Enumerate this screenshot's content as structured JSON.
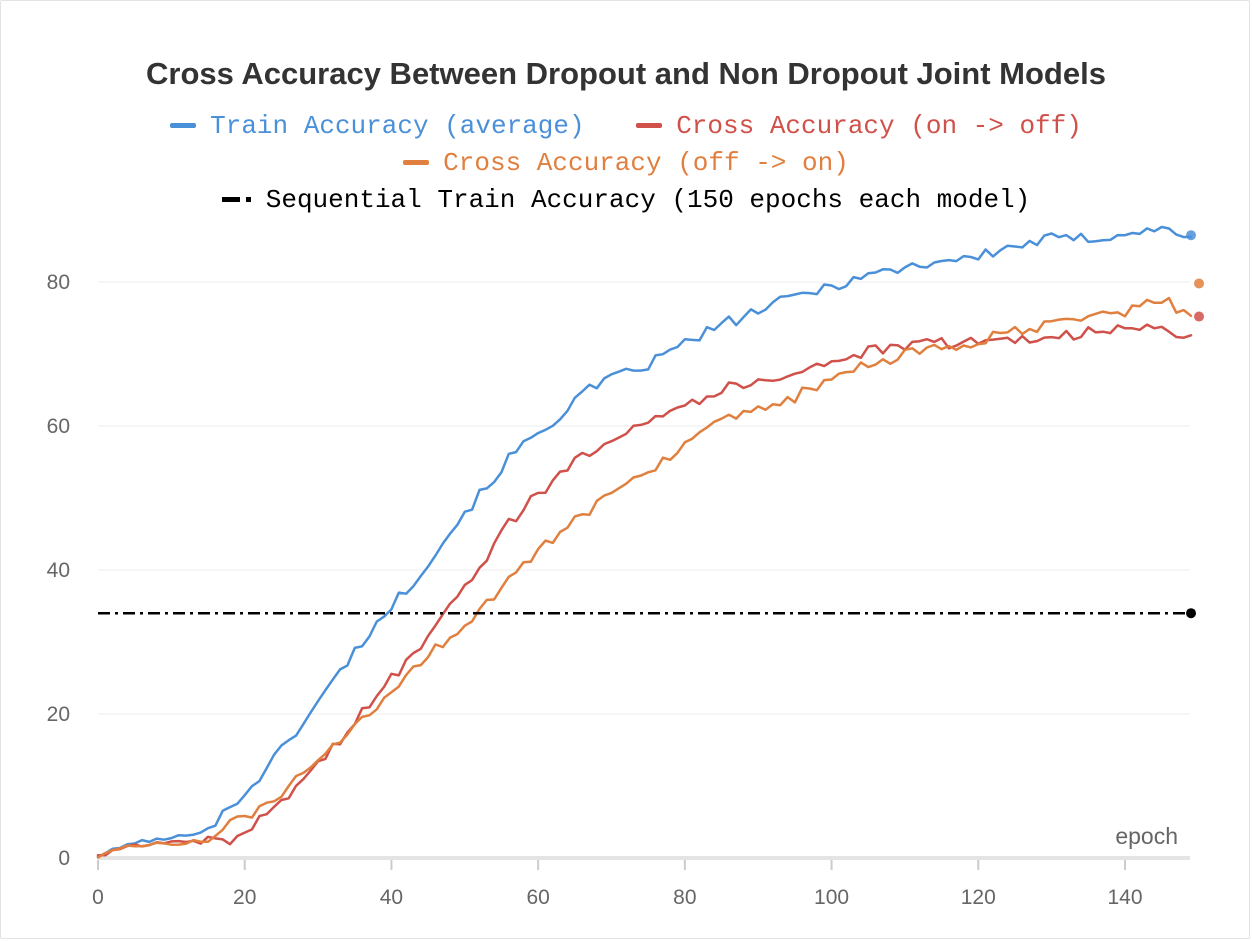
{
  "chart_data": {
    "type": "line",
    "title": "Cross Accuracy Between Dropout and Non Dropout Joint Models",
    "xlabel": "epoch",
    "ylabel": "",
    "xlim": [
      0,
      150
    ],
    "ylim": [
      0,
      90
    ],
    "x_ticks": [
      0,
      20,
      40,
      60,
      80,
      100,
      120,
      140
    ],
    "y_ticks": [
      0,
      20,
      40,
      60,
      80
    ],
    "grid": true,
    "legend_position": "top-center",
    "x_last": 149,
    "series": [
      {
        "name": "Train Accuracy (average)",
        "color": "#4a90d9",
        "style": "solid",
        "anchors": [
          [
            0,
            0.3
          ],
          [
            5,
            2.2
          ],
          [
            10,
            2.7
          ],
          [
            15,
            4
          ],
          [
            18,
            7
          ],
          [
            20,
            9
          ],
          [
            23,
            12.5
          ],
          [
            25,
            15
          ],
          [
            28,
            19
          ],
          [
            30,
            21.5
          ],
          [
            33,
            26
          ],
          [
            36,
            30
          ],
          [
            38,
            32.5
          ],
          [
            40,
            35
          ],
          [
            43,
            38.5
          ],
          [
            46,
            42.5
          ],
          [
            50,
            48
          ],
          [
            53,
            51.5
          ],
          [
            56,
            55.5
          ],
          [
            60,
            59
          ],
          [
            63,
            61.5
          ],
          [
            66,
            64.5
          ],
          [
            70,
            66.5
          ],
          [
            75,
            68.5
          ],
          [
            80,
            71.5
          ],
          [
            85,
            74
          ],
          [
            90,
            76
          ],
          [
            95,
            78
          ],
          [
            100,
            79.5
          ],
          [
            105,
            81
          ],
          [
            110,
            82
          ],
          [
            115,
            83
          ],
          [
            120,
            83.5
          ],
          [
            125,
            85
          ],
          [
            130,
            86
          ],
          [
            135,
            86
          ],
          [
            140,
            86.8
          ],
          [
            145,
            87.3
          ],
          [
            149,
            86.5
          ]
        ]
      },
      {
        "name": "Cross Accuracy (on -> off)",
        "color": "#d0504a",
        "style": "solid",
        "anchors": [
          [
            0,
            0.3
          ],
          [
            5,
            1.8
          ],
          [
            10,
            2.1
          ],
          [
            15,
            2.2
          ],
          [
            18,
            2.3
          ],
          [
            20,
            3.5
          ],
          [
            23,
            6
          ],
          [
            25,
            8
          ],
          [
            28,
            11
          ],
          [
            30,
            13
          ],
          [
            33,
            16.5
          ],
          [
            36,
            20
          ],
          [
            38,
            22.5
          ],
          [
            40,
            25
          ],
          [
            43,
            28
          ],
          [
            46,
            33
          ],
          [
            50,
            38
          ],
          [
            53,
            42
          ],
          [
            56,
            46.5
          ],
          [
            60,
            50.5
          ],
          [
            63,
            53
          ],
          [
            66,
            56
          ],
          [
            70,
            58.5
          ],
          [
            75,
            61
          ],
          [
            80,
            63
          ],
          [
            85,
            65
          ],
          [
            90,
            66.3
          ],
          [
            95,
            67.5
          ],
          [
            100,
            69
          ],
          [
            105,
            70.3
          ],
          [
            110,
            71
          ],
          [
            115,
            71.5
          ],
          [
            120,
            71.8
          ],
          [
            125,
            72
          ],
          [
            130,
            72.5
          ],
          [
            135,
            73
          ],
          [
            140,
            73.3
          ],
          [
            145,
            73.8
          ],
          [
            149,
            72
          ]
        ],
        "end_marker": 75.2
      },
      {
        "name": "Cross Accuracy (off -> on)",
        "color": "#e07f3e",
        "style": "solid",
        "anchors": [
          [
            0,
            0.3
          ],
          [
            5,
            1.8
          ],
          [
            10,
            2
          ],
          [
            15,
            2.5
          ],
          [
            18,
            4.5
          ],
          [
            20,
            5.5
          ],
          [
            23,
            7.5
          ],
          [
            25,
            9
          ],
          [
            28,
            11.5
          ],
          [
            30,
            13
          ],
          [
            33,
            16
          ],
          [
            36,
            19
          ],
          [
            38,
            21
          ],
          [
            40,
            23
          ],
          [
            43,
            26.5
          ],
          [
            46,
            29
          ],
          [
            50,
            32.5
          ],
          [
            53,
            35.5
          ],
          [
            56,
            38.5
          ],
          [
            60,
            42.5
          ],
          [
            63,
            45
          ],
          [
            66,
            47.5
          ],
          [
            70,
            51
          ],
          [
            75,
            54
          ],
          [
            80,
            57
          ],
          [
            85,
            60.5
          ],
          [
            90,
            62
          ],
          [
            95,
            64
          ],
          [
            100,
            66.5
          ],
          [
            105,
            68.5
          ],
          [
            110,
            69.8
          ],
          [
            115,
            70.8
          ],
          [
            120,
            71.8
          ],
          [
            125,
            73
          ],
          [
            130,
            74
          ],
          [
            135,
            75
          ],
          [
            140,
            76
          ],
          [
            145,
            77.5
          ],
          [
            149,
            75.5
          ]
        ],
        "end_marker": 79.8
      },
      {
        "name": "Sequential Train Accuracy (150 epochs each model)",
        "color": "#000000",
        "style": "dashdot",
        "constant": 34
      }
    ]
  }
}
